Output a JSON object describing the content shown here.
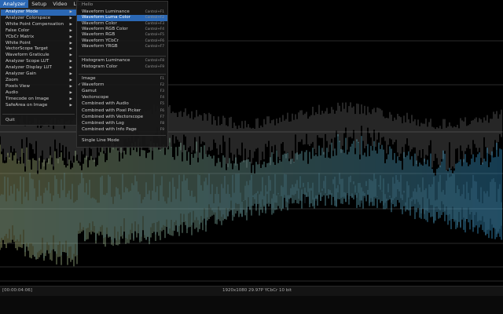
{
  "menubar": {
    "items": [
      "Analyzer",
      "Setup",
      "Video",
      "Log"
    ]
  },
  "menu": {
    "items": [
      "Analyzer Mode",
      "Analyzer Colorspace",
      "White Point Compensation",
      "False Color",
      "YCbCr Matrix",
      "White Point",
      "VectorScope Target",
      "Waveform Graticule",
      "Analyzer Scope LUT",
      "Analyzer Display LUT",
      "Analyzer Gain",
      "Zoom",
      "Pixels View",
      "Audio",
      "Timecode on Image",
      "SafeArea on Image"
    ],
    "quit": "Quit"
  },
  "submenu": {
    "title": "Hello",
    "groups": [
      [
        {
          "label": "Waveform Luminance",
          "shortcut": "Control+F1"
        },
        {
          "label": "Waveform Luma Color",
          "shortcut": "Control+F2"
        },
        {
          "label": "Waveform Color",
          "shortcut": "Control+F3"
        },
        {
          "label": "Waveform RGB Color",
          "shortcut": "Control+F4"
        },
        {
          "label": "Waveform RGB",
          "shortcut": "Control+F5"
        },
        {
          "label": "Waveform YCbCr",
          "shortcut": "Control+F6"
        },
        {
          "label": "Waveform YRGB",
          "shortcut": "Control+F7"
        }
      ],
      [
        {
          "label": "Histogram Luminance",
          "shortcut": "Control+F8"
        },
        {
          "label": "Histogram Color",
          "shortcut": "Control+F9"
        }
      ],
      [
        {
          "label": "Image",
          "shortcut": "F1"
        },
        {
          "label": "Waveform",
          "shortcut": "F2"
        },
        {
          "label": "Gamut",
          "shortcut": "F3"
        },
        {
          "label": "Vectorscope",
          "shortcut": "F4"
        },
        {
          "label": "Combined with Audio",
          "shortcut": "F5"
        },
        {
          "label": "Combined with Pixel Picker",
          "shortcut": "F6"
        },
        {
          "label": "Combined with Vectorscope",
          "shortcut": "F7"
        },
        {
          "label": "Combined with Log",
          "shortcut": "F8"
        },
        {
          "label": "Combined with Info Page",
          "shortcut": "F9"
        }
      ]
    ],
    "single_line": "Single Line Mode"
  },
  "status": {
    "timecode": "[00:00:04:06]",
    "format": "1920x1080 29.97P YCbCr 10 bit"
  }
}
